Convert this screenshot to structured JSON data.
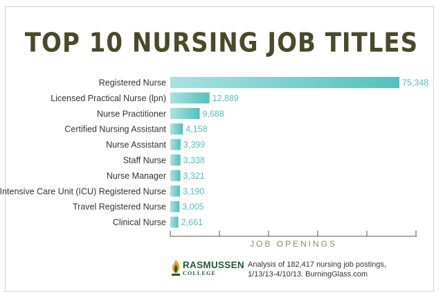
{
  "chart_data": {
    "type": "bar",
    "orientation": "horizontal",
    "title": "TOP 10 NURSING JOB TITLES",
    "xlabel": "JOB OPENINGS",
    "ylabel": "",
    "xlim": [
      0,
      75348
    ],
    "grid": false,
    "categories": [
      "Registered Nurse",
      "Licensed Practical Nurse (lpn)",
      "Nurse Practitioner",
      "Certified Nursing Assistant",
      "Nurse Assistant",
      "Staff Nurse",
      "Nurse Manager",
      "Intensive Care Unit (ICU) Registered Nurse",
      "Travel Registered Nurse",
      "Clinical Nurse"
    ],
    "values": [
      75348,
      12889,
      9688,
      4158,
      3399,
      3338,
      3321,
      3190,
      3005,
      2661
    ],
    "value_labels": [
      "75,348",
      "12,889",
      "9,688",
      "4,158",
      "3,399",
      "3,338",
      "3,321",
      "3,190",
      "3,005",
      "2,661"
    ],
    "colors": {
      "bar_light": "#a9e2e1",
      "bar_dark": "#53c0bd",
      "value_text": "#53c0bd",
      "axis": "#555555"
    }
  },
  "branding": {
    "logo_name": "RASMUSSEN",
    "logo_sub": "COLLEGE",
    "logo_icon": "flame-icon",
    "colors": {
      "green": "#1f5a3a",
      "flame": "#f0a21c"
    }
  },
  "footnote": {
    "line1": "Analysis of 182,417 nursing job postings,",
    "line2": "1/13/13-4/10/13. BurningGlass.com"
  }
}
